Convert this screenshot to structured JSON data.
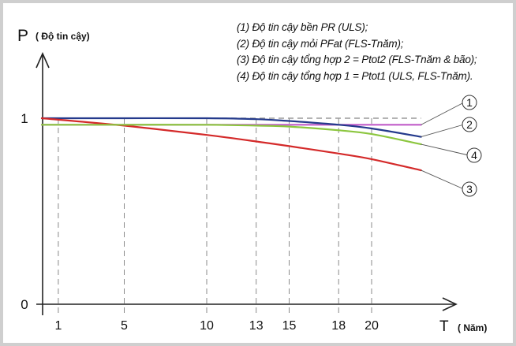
{
  "chart_data": {
    "type": "line",
    "ylabel_symbol": "P",
    "ylabel_note": "( Độ tin cậy)",
    "xlabel_symbol": "T",
    "xlabel_note": "( Năm)",
    "x_ticks": [
      1,
      5,
      10,
      13,
      15,
      18,
      20
    ],
    "y_ticks": [
      {
        "value": 0,
        "label": "0"
      },
      {
        "value": 1,
        "label": "1"
      }
    ],
    "xlim": [
      0,
      24
    ],
    "ylim": [
      0,
      1.18
    ],
    "grid": "dashed vertical lines at x ticks",
    "legend_placement": "top-right",
    "legend": [
      "(1) Độ tin cậy bền PR (ULS);",
      "(2) Độ tin cậy mỏi PFat (FLS-Tnăm);",
      "(3) Độ tin cậy tổng hợp 2 = Ptot2 (FLS-Tnăm & bão);",
      "(4) Độ tin cậy tổng hợp 1 = Ptot1 (ULS, FLS-Tnăm)."
    ],
    "series": [
      {
        "label": "1",
        "color": "#c05cc8",
        "x": [
          0,
          5,
          10,
          15,
          20,
          23
        ],
        "y": [
          0.965,
          0.965,
          0.965,
          0.965,
          0.965,
          0.965
        ]
      },
      {
        "label": "2",
        "color": "#243a8c",
        "x": [
          0,
          5,
          10,
          13,
          15,
          18,
          20,
          23
        ],
        "y": [
          1.0,
          1.0,
          1.0,
          0.995,
          0.985,
          0.965,
          0.945,
          0.9
        ]
      },
      {
        "label": "3",
        "color": "#d42a2a",
        "x": [
          0,
          5,
          10,
          13,
          15,
          18,
          20,
          23
        ],
        "y": [
          1.0,
          0.96,
          0.91,
          0.875,
          0.85,
          0.81,
          0.78,
          0.72
        ]
      },
      {
        "label": "4",
        "color": "#8cc63f",
        "x": [
          0,
          5,
          10,
          13,
          15,
          18,
          20,
          23
        ],
        "y": [
          0.965,
          0.965,
          0.965,
          0.96,
          0.955,
          0.935,
          0.915,
          0.86
        ]
      }
    ],
    "reference_line": {
      "y": 1.0,
      "style": "dashed",
      "color": "#9a9a9a"
    }
  }
}
